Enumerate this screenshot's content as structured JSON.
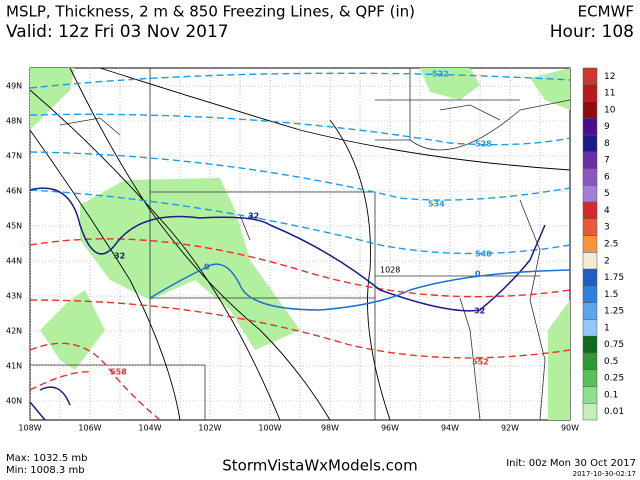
{
  "header": {
    "title": "MSLP, Thickness, 2 m & 850 Freezing Lines, & QPF (in)",
    "model": "ECMWF",
    "valid": "Valid: 12z Fri 03 Nov 2017",
    "hour": "Hour: 108"
  },
  "map": {
    "lat_labels": [
      "49N",
      "48N",
      "47N",
      "46N",
      "45N",
      "44N",
      "43N",
      "42N",
      "41N",
      "40N"
    ],
    "lon_labels": [
      "108W",
      "106W",
      "104W",
      "102W",
      "100W",
      "98W",
      "96W",
      "94W",
      "92W",
      "90W"
    ],
    "contour_labels": [
      "522",
      "528",
      "534",
      "540",
      "552",
      "558",
      "32",
      "32",
      "32",
      "0",
      "0",
      "1028"
    ]
  },
  "legend": [
    {
      "label": "12",
      "color": "#d2352d"
    },
    {
      "label": "11",
      "color": "#b8191b"
    },
    {
      "label": "10",
      "color": "#8e0e10"
    },
    {
      "label": "9",
      "color": "#4b0c8f"
    },
    {
      "label": "8",
      "color": "#1b1b8c"
    },
    {
      "label": "7",
      "color": "#6a2fa6"
    },
    {
      "label": "6",
      "color": "#8c55c0"
    },
    {
      "label": "5",
      "color": "#a47ed6"
    },
    {
      "label": "4",
      "color": "#d42a2a"
    },
    {
      "label": "3",
      "color": "#ea5a3a"
    },
    {
      "label": "2.5",
      "color": "#f5953c"
    },
    {
      "label": "2",
      "color": "#f4ead2"
    },
    {
      "label": "1.75",
      "color": "#1f5fc4"
    },
    {
      "label": "1.5",
      "color": "#2f7fde"
    },
    {
      "label": "1.25",
      "color": "#5aa6ee"
    },
    {
      "label": "1",
      "color": "#92c8f6"
    },
    {
      "label": "0.75",
      "color": "#0f6b1c"
    },
    {
      "label": "0.5",
      "color": "#2e9a33"
    },
    {
      "label": "0.25",
      "color": "#58c257"
    },
    {
      "label": "0.1",
      "color": "#8fe08a"
    },
    {
      "label": "0.01",
      "color": "#c3f0b8"
    }
  ],
  "footer": {
    "max": "Max: 1032.5 mb",
    "min": "Min: 1008.3 mb",
    "site": "StormVistaWxModels.com",
    "init": "Init: 00z Mon 30 Oct 2017",
    "stamp": "2017-10-30-02:17"
  }
}
